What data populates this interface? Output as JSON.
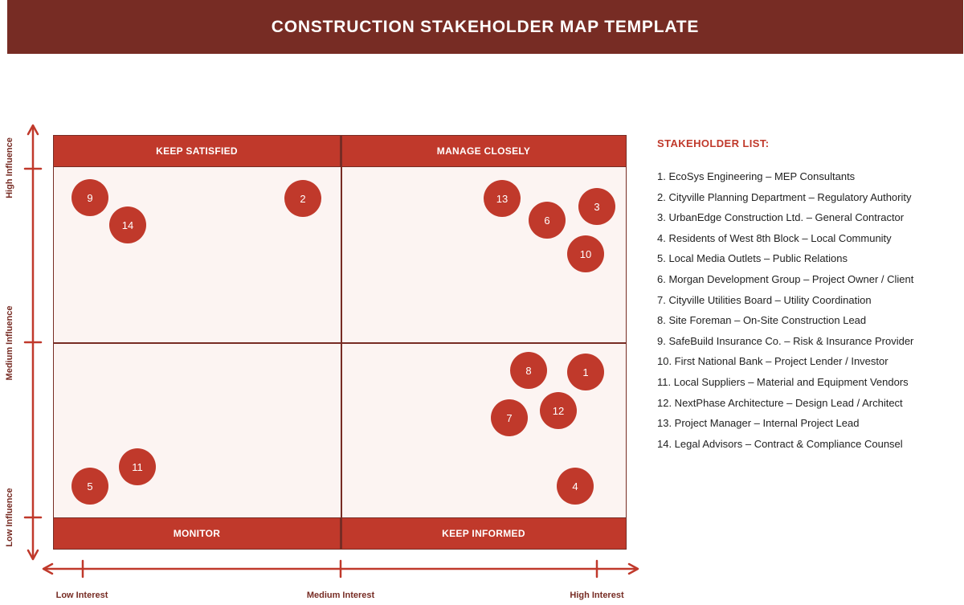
{
  "header": {
    "title": "CONSTRUCTION STAKEHOLDER MAP TEMPLATE"
  },
  "colors": {
    "header_bg": "#772c24",
    "accent": "#c0392b",
    "quadrant_bg": "#fcf4f2"
  },
  "quadrants": {
    "top_left": "KEEP SATISFIED",
    "top_right": "MANAGE CLOSELY",
    "bottom_left": "MONITOR",
    "bottom_right": "KEEP INFORMED"
  },
  "axes": {
    "y_labels": [
      "High Influence",
      "Medium Influence",
      "Low Influence"
    ],
    "x_labels": [
      "Low Interest",
      "Medium Interest",
      "High Interest"
    ]
  },
  "stakeholders_on_map": [
    "9",
    "14",
    "2",
    "13",
    "6",
    "3",
    "10",
    "8",
    "1",
    "12",
    "7",
    "11",
    "5",
    "4"
  ],
  "stakeholder_list": {
    "title": "STAKEHOLDER LIST:",
    "items": [
      "1. EcoSys Engineering – MEP Consultants",
      "2. Cityville Planning Department – Regulatory Authority",
      "3. UrbanEdge Construction Ltd. – General Contractor",
      "4. Residents of West 8th Block – Local Community",
      "5. Local Media Outlets – Public Relations",
      "6. Morgan Development Group – Project Owner / Client",
      "7. Cityville Utilities Board – Utility Coordination",
      "8. Site Foreman – On-Site Construction Lead",
      "9. SafeBuild Insurance Co. – Risk & Insurance Provider",
      "10. First National Bank – Project Lender / Investor",
      "11. Local Suppliers – Material and Equipment Vendors",
      "12. NextPhase Architecture – Design Lead / Architect",
      "13. Project Manager – Internal Project Lead",
      "14. Legal Advisors – Contract & Compliance Counsel"
    ]
  }
}
